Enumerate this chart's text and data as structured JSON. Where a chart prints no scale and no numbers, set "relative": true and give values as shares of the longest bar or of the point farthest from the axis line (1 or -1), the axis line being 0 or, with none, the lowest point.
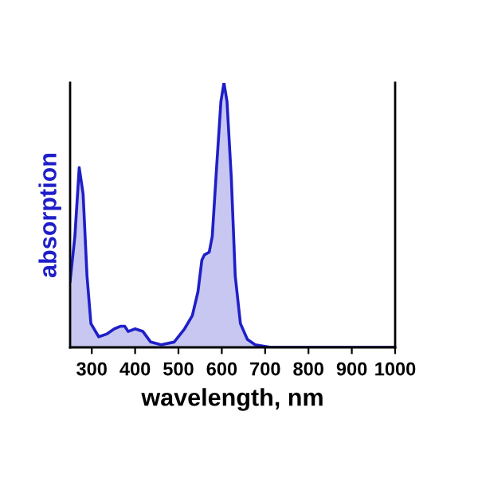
{
  "chart_data": {
    "type": "area",
    "relative": true,
    "xlabel": "wavelength, nm",
    "ylabel": "absorption",
    "x": [
      250,
      261,
      271,
      280,
      289,
      298,
      316,
      334,
      352,
      367,
      376,
      384,
      400,
      418,
      436,
      460,
      490,
      514,
      532,
      545,
      554,
      560,
      571,
      578,
      588,
      598,
      605,
      612,
      622,
      631,
      643,
      659,
      677,
      713,
      761,
      1000
    ],
    "series": [
      {
        "color": "#1f1fc8",
        "values": [
          0.25,
          0.42,
          0.68,
          0.58,
          0.27,
          0.09,
          0.04,
          0.05,
          0.07,
          0.08,
          0.08,
          0.06,
          0.07,
          0.06,
          0.02,
          0.01,
          0.02,
          0.07,
          0.12,
          0.21,
          0.33,
          0.35,
          0.36,
          0.42,
          0.68,
          0.93,
          1.0,
          0.93,
          0.64,
          0.27,
          0.09,
          0.03,
          0.01,
          0.0,
          0.0,
          0.0
        ]
      }
    ],
    "xlim": [
      250,
      1000
    ],
    "xticks": [
      300,
      400,
      500,
      600,
      700,
      800,
      900,
      1000
    ],
    "grid": false,
    "legend": false
  }
}
